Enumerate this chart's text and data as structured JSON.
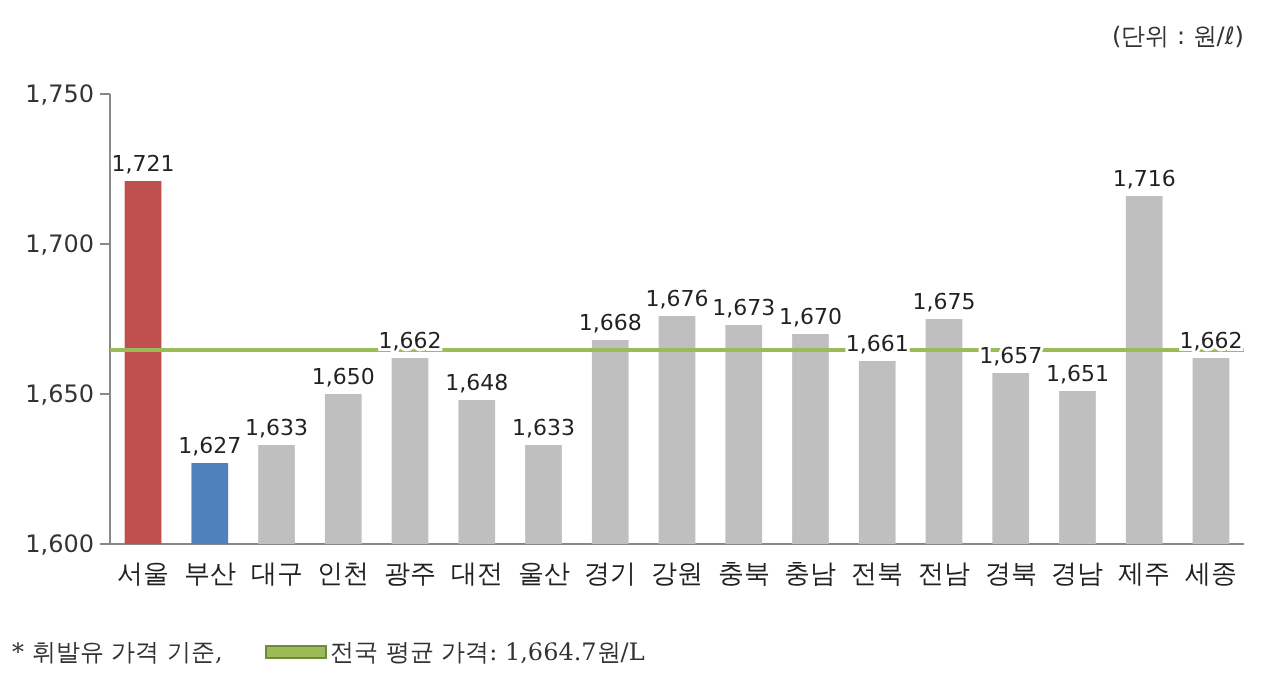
{
  "chart_data": {
    "type": "bar",
    "categories": [
      "서울",
      "부산",
      "대구",
      "인천",
      "광주",
      "대전",
      "울산",
      "경기",
      "강원",
      "충북",
      "충남",
      "전북",
      "전남",
      "경북",
      "경남",
      "제주",
      "세종"
    ],
    "values": [
      1721,
      1627,
      1633,
      1650,
      1662,
      1648,
      1633,
      1668,
      1676,
      1673,
      1670,
      1661,
      1675,
      1657,
      1651,
      1716,
      1662
    ],
    "colors": [
      "#c0504d",
      "#4f81bd",
      "#bfbfbf",
      "#bfbfbf",
      "#bfbfbf",
      "#bfbfbf",
      "#bfbfbf",
      "#bfbfbf",
      "#bfbfbf",
      "#bfbfbf",
      "#bfbfbf",
      "#bfbfbf",
      "#bfbfbf",
      "#bfbfbf",
      "#bfbfbf",
      "#bfbfbf",
      "#bfbfbf"
    ],
    "value_labels": [
      "1,721",
      "1,627",
      "1,633",
      "1,650",
      "1,662",
      "1,648",
      "1,633",
      "1,668",
      "1,676",
      "1,673",
      "1,670",
      "1,661",
      "1,675",
      "1,657",
      "1,651",
      "1,716",
      "1,662"
    ],
    "ylim": [
      1600,
      1750
    ],
    "yticks": [
      {
        "value": 1600,
        "label": "1,600"
      },
      {
        "value": 1650,
        "label": "1,650"
      },
      {
        "value": 1700,
        "label": "1,700"
      },
      {
        "value": 1750,
        "label": "1,750"
      }
    ],
    "ref_lines": [
      {
        "axis": "y",
        "value": 1664.7,
        "label": "전국 평균 가격: 1,664.7원/L",
        "color": "#9bbb59"
      }
    ],
    "annotations": [
      "(단위 : 원/ℓ)",
      "* 휘발유 가격 기준,"
    ],
    "grid": false
  }
}
